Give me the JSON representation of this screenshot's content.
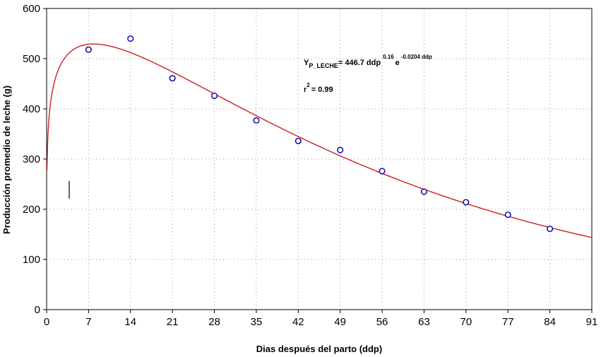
{
  "chart_data": {
    "type": "scatter",
    "title": "",
    "xlabel": "Dias después del parto (ddp)",
    "ylabel": "Producción promedio de leche (g)",
    "xlim": [
      0,
      91
    ],
    "ylim": [
      0,
      600
    ],
    "xticks": [
      0,
      7,
      14,
      21,
      28,
      35,
      42,
      49,
      56,
      63,
      70,
      77,
      84,
      91
    ],
    "yticks": [
      0,
      100,
      200,
      300,
      400,
      500,
      600
    ],
    "grid": "dotted",
    "series": [
      {
        "kind": "points",
        "color": "#1a1aa8",
        "x": [
          7,
          14,
          21,
          28,
          35,
          42,
          49,
          56,
          63,
          70,
          77,
          84
        ],
        "y": [
          518,
          540,
          461,
          426,
          377,
          336,
          318,
          276,
          235,
          214,
          189,
          161
        ]
      },
      {
        "kind": "fitted-curve",
        "color": "#cc1f1f",
        "model": {
          "a": 446.7,
          "b": 0.16,
          "c": -0.0204
        },
        "x_range": [
          0.05,
          91
        ]
      }
    ],
    "annotations": {
      "equation": {
        "y_symbol": "Y",
        "y_subscript": "P_LECHE",
        "equals": "= 446.7 ddp",
        "exp1": "0.16",
        "e_symbol": "e",
        "exp2": "-0.0204 ddp"
      },
      "r2": {
        "symbol": "r",
        "sup": "2",
        "value": "= 0.99"
      }
    }
  }
}
